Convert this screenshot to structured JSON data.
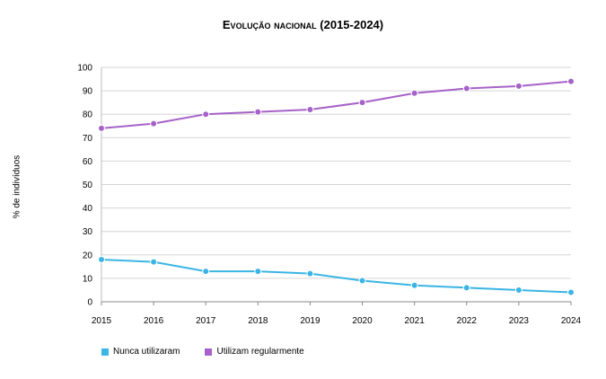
{
  "chart_data": {
    "type": "line",
    "title": "Evolução nacional (2015-2024)",
    "xlabel": "",
    "ylabel": "% de indivíduos",
    "x": [
      2015,
      2016,
      2017,
      2018,
      2019,
      2020,
      2021,
      2022,
      2023,
      2024
    ],
    "ylim": [
      0,
      100
    ],
    "yticks": [
      0,
      10,
      20,
      30,
      40,
      50,
      60,
      70,
      80,
      90,
      100
    ],
    "grid": true,
    "legend": "bottom-left",
    "series": [
      {
        "name": "Nunca utilizaram",
        "color": "#3bb5e4",
        "values": [
          18,
          17,
          13,
          13,
          12,
          9,
          7,
          6,
          5,
          4
        ]
      },
      {
        "name": "Utilizam regularmente",
        "color": "#a662c8",
        "values": [
          74,
          76,
          80,
          81,
          82,
          85,
          89,
          91,
          92,
          94
        ]
      }
    ]
  }
}
